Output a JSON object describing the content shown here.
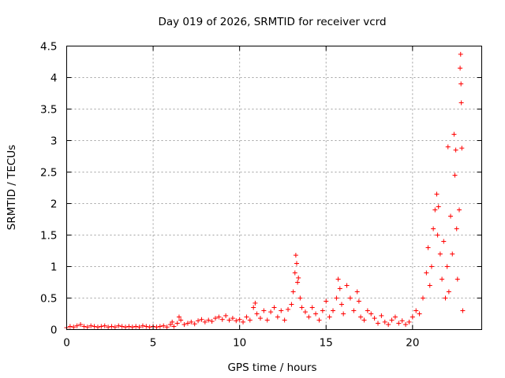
{
  "chart_data": {
    "type": "scatter",
    "title": "Day 019 of 2026, SRMTID for receiver vcrd",
    "xlabel": "GPS time / hours",
    "ylabel": "SRMTID / TECUs",
    "xlim": [
      0,
      24
    ],
    "ylim": [
      0,
      4.5
    ],
    "xticks": [
      0,
      5,
      10,
      15,
      20
    ],
    "xtick_labels": [
      "0",
      "5",
      "10",
      "15",
      "20"
    ],
    "yticks": [
      0,
      0.5,
      1,
      1.5,
      2,
      2.5,
      3,
      3.5,
      4,
      4.5
    ],
    "ytick_labels": [
      "0",
      "0.5",
      "1",
      "1.5",
      "2",
      "2.5",
      "3",
      "3.5",
      "4",
      "4.5"
    ],
    "grid": true,
    "marker": "+",
    "marker_color": "#ff0000",
    "series": [
      {
        "name": "SRMTID",
        "points": [
          [
            0.0,
            0.03
          ],
          [
            0.2,
            0.05
          ],
          [
            0.4,
            0.04
          ],
          [
            0.6,
            0.06
          ],
          [
            0.8,
            0.08
          ],
          [
            1.0,
            0.05
          ],
          [
            1.2,
            0.04
          ],
          [
            1.4,
            0.06
          ],
          [
            1.6,
            0.05
          ],
          [
            1.8,
            0.04
          ],
          [
            2.0,
            0.05
          ],
          [
            2.2,
            0.06
          ],
          [
            2.4,
            0.04
          ],
          [
            2.6,
            0.05
          ],
          [
            2.8,
            0.04
          ],
          [
            3.0,
            0.06
          ],
          [
            3.2,
            0.05
          ],
          [
            3.4,
            0.04
          ],
          [
            3.6,
            0.05
          ],
          [
            3.8,
            0.04
          ],
          [
            4.0,
            0.05
          ],
          [
            4.2,
            0.04
          ],
          [
            4.4,
            0.06
          ],
          [
            4.6,
            0.05
          ],
          [
            4.8,
            0.04
          ],
          [
            5.0,
            0.05
          ],
          [
            5.2,
            0.04
          ],
          [
            5.4,
            0.05
          ],
          [
            5.6,
            0.06
          ],
          [
            5.8,
            0.04
          ],
          [
            6.0,
            0.08
          ],
          [
            6.1,
            0.12
          ],
          [
            6.2,
            0.05
          ],
          [
            6.4,
            0.1
          ],
          [
            6.5,
            0.2
          ],
          [
            6.6,
            0.15
          ],
          [
            6.8,
            0.08
          ],
          [
            7.0,
            0.1
          ],
          [
            7.2,
            0.12
          ],
          [
            7.4,
            0.09
          ],
          [
            7.6,
            0.14
          ],
          [
            7.8,
            0.16
          ],
          [
            8.0,
            0.12
          ],
          [
            8.2,
            0.15
          ],
          [
            8.4,
            0.13
          ],
          [
            8.6,
            0.18
          ],
          [
            8.8,
            0.2
          ],
          [
            9.0,
            0.16
          ],
          [
            9.2,
            0.22
          ],
          [
            9.4,
            0.15
          ],
          [
            9.6,
            0.18
          ],
          [
            9.8,
            0.14
          ],
          [
            10.0,
            0.16
          ],
          [
            10.2,
            0.12
          ],
          [
            10.4,
            0.2
          ],
          [
            10.6,
            0.15
          ],
          [
            10.8,
            0.35
          ],
          [
            10.9,
            0.42
          ],
          [
            11.0,
            0.25
          ],
          [
            11.2,
            0.18
          ],
          [
            11.4,
            0.3
          ],
          [
            11.6,
            0.15
          ],
          [
            11.8,
            0.28
          ],
          [
            12.0,
            0.35
          ],
          [
            12.2,
            0.2
          ],
          [
            12.4,
            0.3
          ],
          [
            12.6,
            0.15
          ],
          [
            12.8,
            0.32
          ],
          [
            13.0,
            0.4
          ],
          [
            13.1,
            0.6
          ],
          [
            13.2,
            0.9
          ],
          [
            13.25,
            1.18
          ],
          [
            13.3,
            1.05
          ],
          [
            13.35,
            0.75
          ],
          [
            13.4,
            0.82
          ],
          [
            13.5,
            0.5
          ],
          [
            13.6,
            0.35
          ],
          [
            13.8,
            0.28
          ],
          [
            14.0,
            0.2
          ],
          [
            14.2,
            0.35
          ],
          [
            14.4,
            0.25
          ],
          [
            14.6,
            0.15
          ],
          [
            14.8,
            0.3
          ],
          [
            15.0,
            0.45
          ],
          [
            15.2,
            0.2
          ],
          [
            15.4,
            0.3
          ],
          [
            15.6,
            0.5
          ],
          [
            15.7,
            0.8
          ],
          [
            15.8,
            0.65
          ],
          [
            15.9,
            0.4
          ],
          [
            16.0,
            0.25
          ],
          [
            16.2,
            0.7
          ],
          [
            16.4,
            0.5
          ],
          [
            16.6,
            0.3
          ],
          [
            16.8,
            0.6
          ],
          [
            16.9,
            0.45
          ],
          [
            17.0,
            0.2
          ],
          [
            17.2,
            0.15
          ],
          [
            17.4,
            0.3
          ],
          [
            17.6,
            0.25
          ],
          [
            17.8,
            0.18
          ],
          [
            18.0,
            0.1
          ],
          [
            18.2,
            0.22
          ],
          [
            18.4,
            0.12
          ],
          [
            18.6,
            0.08
          ],
          [
            18.8,
            0.15
          ],
          [
            19.0,
            0.2
          ],
          [
            19.2,
            0.1
          ],
          [
            19.4,
            0.14
          ],
          [
            19.6,
            0.08
          ],
          [
            19.8,
            0.12
          ],
          [
            20.0,
            0.2
          ],
          [
            20.2,
            0.3
          ],
          [
            20.4,
            0.25
          ],
          [
            20.6,
            0.5
          ],
          [
            20.8,
            0.9
          ],
          [
            20.9,
            1.3
          ],
          [
            21.0,
            0.7
          ],
          [
            21.1,
            1.0
          ],
          [
            21.2,
            1.6
          ],
          [
            21.3,
            1.9
          ],
          [
            21.4,
            2.15
          ],
          [
            21.45,
            1.5
          ],
          [
            21.5,
            1.95
          ],
          [
            21.6,
            1.2
          ],
          [
            21.7,
            0.8
          ],
          [
            21.8,
            1.4
          ],
          [
            21.9,
            0.5
          ],
          [
            22.0,
            1.0
          ],
          [
            22.05,
            2.9
          ],
          [
            22.1,
            0.6
          ],
          [
            22.2,
            1.8
          ],
          [
            22.3,
            1.2
          ],
          [
            22.4,
            3.1
          ],
          [
            22.45,
            2.45
          ],
          [
            22.5,
            2.85
          ],
          [
            22.55,
            1.6
          ],
          [
            22.6,
            0.8
          ],
          [
            22.7,
            1.9
          ],
          [
            22.75,
            4.15
          ],
          [
            22.78,
            4.37
          ],
          [
            22.8,
            3.9
          ],
          [
            22.82,
            3.6
          ],
          [
            22.85,
            2.88
          ],
          [
            22.9,
            0.3
          ]
        ]
      }
    ]
  }
}
